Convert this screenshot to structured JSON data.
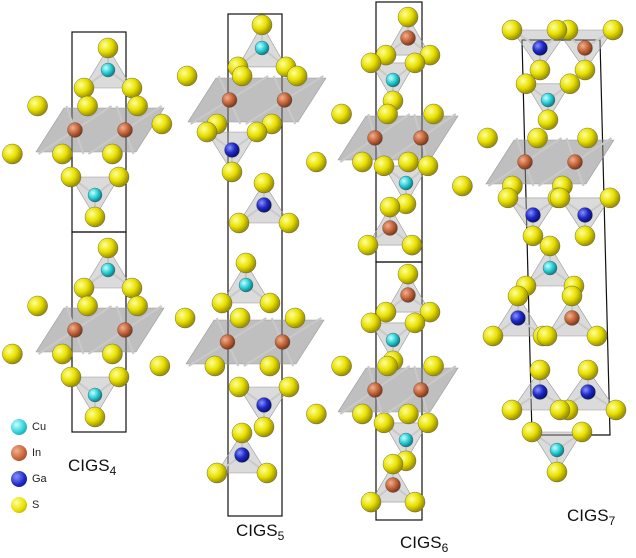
{
  "structures": [
    {
      "name": "CIGS",
      "subscript": "4"
    },
    {
      "name": "CIGS",
      "subscript": "5"
    },
    {
      "name": "CIGS",
      "subscript": "6"
    },
    {
      "name": "CIGS",
      "subscript": "7"
    }
  ],
  "legend": [
    {
      "symbol": "Cu",
      "color": "#2ad0d8"
    },
    {
      "symbol": "In",
      "color": "#c8663a"
    },
    {
      "symbol": "Ga",
      "color": "#1f2ac8"
    },
    {
      "symbol": "S",
      "color": "#e8e000"
    }
  ],
  "colors": {
    "cell_edge": "#111111",
    "polyhedron_fill": "#b0b0b0",
    "octahedral_layer_fill": "#8a8a8a",
    "bond": "#c9c9c9"
  }
}
